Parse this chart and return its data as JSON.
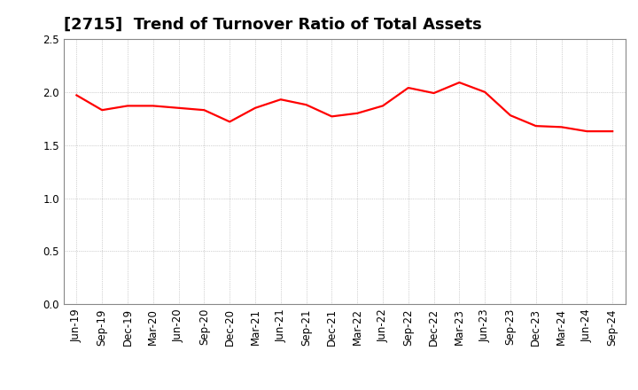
{
  "title": "[2715]  Trend of Turnover Ratio of Total Assets",
  "line_color": "#FF0000",
  "background_color": "#FFFFFF",
  "grid_color": "#AAAAAA",
  "ylim": [
    0.0,
    2.5
  ],
  "yticks": [
    0.0,
    0.5,
    1.0,
    1.5,
    2.0,
    2.5
  ],
  "labels": [
    "Jun-19",
    "Sep-19",
    "Dec-19",
    "Mar-20",
    "Jun-20",
    "Sep-20",
    "Dec-20",
    "Mar-21",
    "Jun-21",
    "Sep-21",
    "Dec-21",
    "Mar-22",
    "Jun-22",
    "Sep-22",
    "Dec-22",
    "Mar-23",
    "Jun-23",
    "Sep-23",
    "Dec-23",
    "Mar-24",
    "Jun-24",
    "Sep-24"
  ],
  "values": [
    1.97,
    1.83,
    1.87,
    1.87,
    1.85,
    1.83,
    1.72,
    1.85,
    1.93,
    1.88,
    1.77,
    1.8,
    1.87,
    2.04,
    1.99,
    2.09,
    2.0,
    1.78,
    1.68,
    1.67,
    1.63,
    1.63
  ],
  "title_fontsize": 13,
  "tick_fontsize": 8.5,
  "line_width": 1.6
}
